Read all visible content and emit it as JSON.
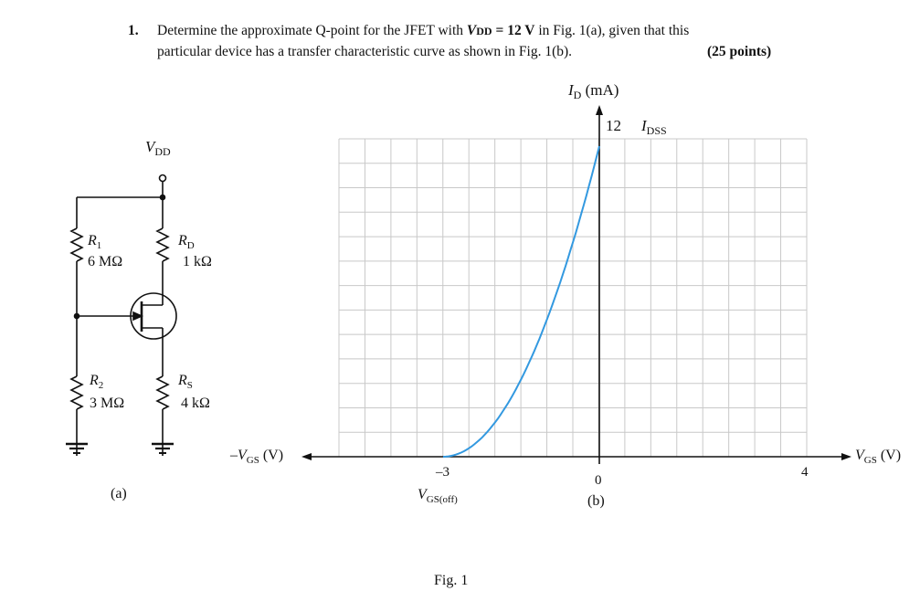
{
  "question": {
    "number": "1.",
    "line1_a": "Determine the approximate Q-point for the JFET with ",
    "line1_vdd": "V",
    "line1_vdd_sub": "DD",
    "line1_vdd_value": " = 12 V",
    "line1_b": " in Fig. 1(a), given that this",
    "line2": "particular device has a transfer characteristic curve as shown in Fig. 1(b).",
    "points": "(25 points)"
  },
  "circuit": {
    "vdd_label": "V",
    "vdd_sub": "DD",
    "r1_name": "R",
    "r1_sub": "1",
    "r1_value": "6 MΩ",
    "rd_name": "R",
    "rd_sub": "D",
    "rd_value": "1 kΩ",
    "r2_name": "R",
    "r2_sub": "2",
    "r2_value": "3 MΩ",
    "rs_name": "R",
    "rs_sub": "S",
    "rs_value": "4 kΩ",
    "caption": "(a)"
  },
  "graph": {
    "id_axis_label": "I",
    "id_axis_sub": "D",
    "id_axis_unit": " (mA)",
    "idss_value": "12",
    "idss_label": "I",
    "idss_sub": "DSS",
    "neg_vgs_label": "–V",
    "neg_vgs_sub": "GS",
    "neg_vgs_unit": " (V)",
    "vgs_label": "V",
    "vgs_sub": "GS",
    "vgs_unit": " (V)",
    "tick_neg3": "–3",
    "vgsoff_label": "V",
    "vgsoff_sub": "GS(off)",
    "tick_zero": "0",
    "tick_four": "4",
    "caption": "(b)",
    "curve_color": "#3399e0"
  },
  "chart_data": {
    "type": "line",
    "title": "",
    "xlabel": "V_GS (V)",
    "ylabel": "I_D (mA)",
    "xlim": [
      -6.5,
      4.5
    ],
    "ylim": [
      0,
      12
    ],
    "series": [
      {
        "name": "",
        "x": [
          -3.0,
          -2.5,
          -2.0,
          -1.5,
          -1.0,
          -0.5,
          0.0
        ],
        "y": [
          0.0,
          0.33,
          1.33,
          3.0,
          5.33,
          8.33,
          12.0
        ]
      }
    ],
    "annotations": [
      "I_DSS = 12 mA",
      "V_GS(off) = -3 V"
    ],
    "grid": true
  },
  "caption": "Fig. 1"
}
